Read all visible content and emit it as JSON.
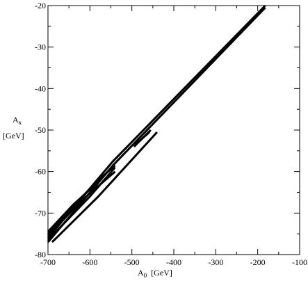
{
  "chart_data": {
    "type": "line",
    "xlabel": {
      "main": "A",
      "sub": "0",
      "unit": "[GeV]"
    },
    "ylabel": {
      "main": "A",
      "sub": "κ",
      "unit": "[GeV]"
    },
    "xlim": [
      -700,
      -100
    ],
    "ylim": [
      -80,
      -20
    ],
    "grid": false,
    "x_ticks": [
      -700,
      -600,
      -500,
      -400,
      -300,
      -200,
      -100
    ],
    "y_ticks": [
      -80,
      -70,
      -60,
      -50,
      -40,
      -30,
      -20
    ],
    "series": [
      {
        "points": [
          [
            -700,
            -77
          ],
          [
            -545,
            -58.5
          ],
          [
            -182,
            -20.5
          ]
        ]
      },
      {
        "points": [
          [
            -700,
            -76
          ],
          [
            -545,
            -57.5
          ],
          [
            -182,
            -20
          ]
        ]
      },
      {
        "points": [
          [
            -700,
            -75
          ],
          [
            -590,
            -63
          ],
          [
            -540,
            -58.5
          ]
        ]
      },
      {
        "points": [
          [
            -700,
            -76.5
          ],
          [
            -600,
            -66
          ],
          [
            -540,
            -59
          ]
        ]
      },
      {
        "points": [
          [
            -700,
            -75.5
          ],
          [
            -620,
            -67
          ],
          [
            -540,
            -60
          ]
        ]
      },
      {
        "points": [
          [
            -690,
            -77
          ],
          [
            -580,
            -66
          ],
          [
            -440,
            -50.5
          ]
        ]
      },
      {
        "points": [
          [
            -700,
            -74.5
          ],
          [
            -640,
            -68
          ],
          [
            -580,
            -62.5
          ]
        ]
      },
      {
        "points": [
          [
            -495,
            -54
          ],
          [
            -455,
            -50
          ]
        ]
      },
      {
        "points": [
          [
            -492,
            -53.5
          ],
          [
            -458,
            -50.5
          ]
        ]
      }
    ]
  }
}
